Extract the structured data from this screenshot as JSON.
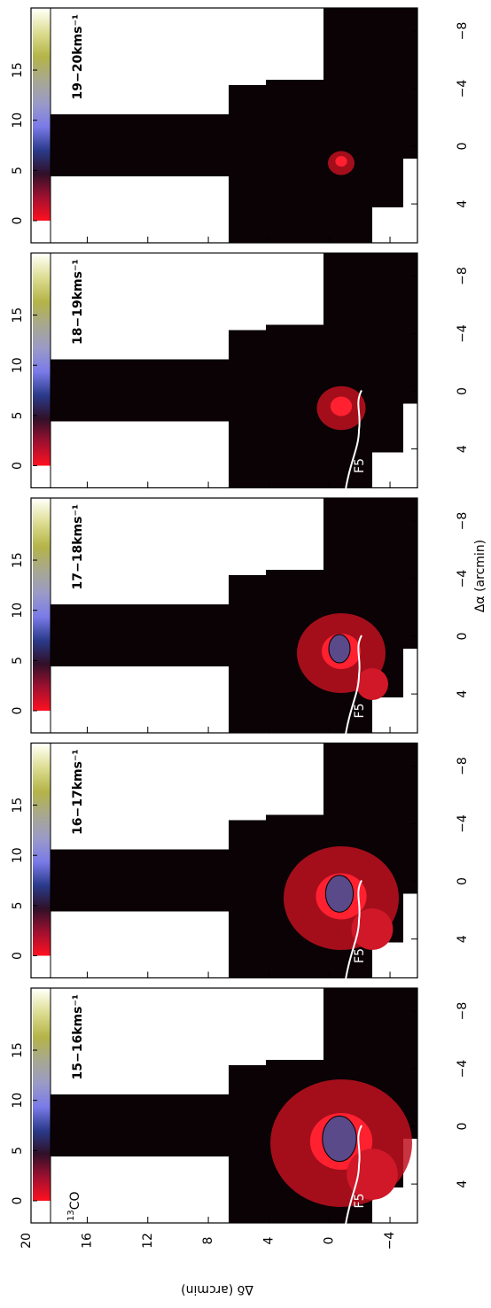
{
  "chart_data": {
    "type": "channel-map",
    "xlabel": "Δα (arcmin)",
    "ylabel": "Δδ (arcmin)",
    "molecule": {
      "isotope": "13",
      "name": "CO"
    },
    "xlim": [
      6.7,
      -9.6
    ],
    "xticks": [
      4,
      0,
      {
        "value": -4,
        "label": "−4"
      },
      {
        "value": -8,
        "label": "−8"
      }
    ],
    "ylim": [
      -6,
      21.5
    ],
    "yticks": [
      20,
      16,
      12,
      8,
      4,
      0,
      {
        "value": -4,
        "label": "−4"
      }
    ],
    "colorbar": {
      "lim": [
        0,
        21
      ],
      "ticks": [
        0,
        5,
        10,
        15
      ],
      "colors": [
        "#ff1020",
        "#a01030",
        "#301028",
        "#2a3a8a",
        "#7a7ae8",
        "#9a9ac8",
        "#a8a890",
        "#b4b448",
        "#dcdc90",
        "#fffff4"
      ]
    },
    "panels": [
      {
        "label": "15−16kms⁻¹",
        "filament": "F5"
      },
      {
        "label": "16−17kms⁻¹",
        "filament": "F5"
      },
      {
        "label": "17−18kms⁻¹",
        "filament": "F5"
      },
      {
        "label": "18−19kms⁻¹",
        "filament": "F5"
      },
      {
        "label": "19−20kms⁻¹"
      }
    ]
  }
}
